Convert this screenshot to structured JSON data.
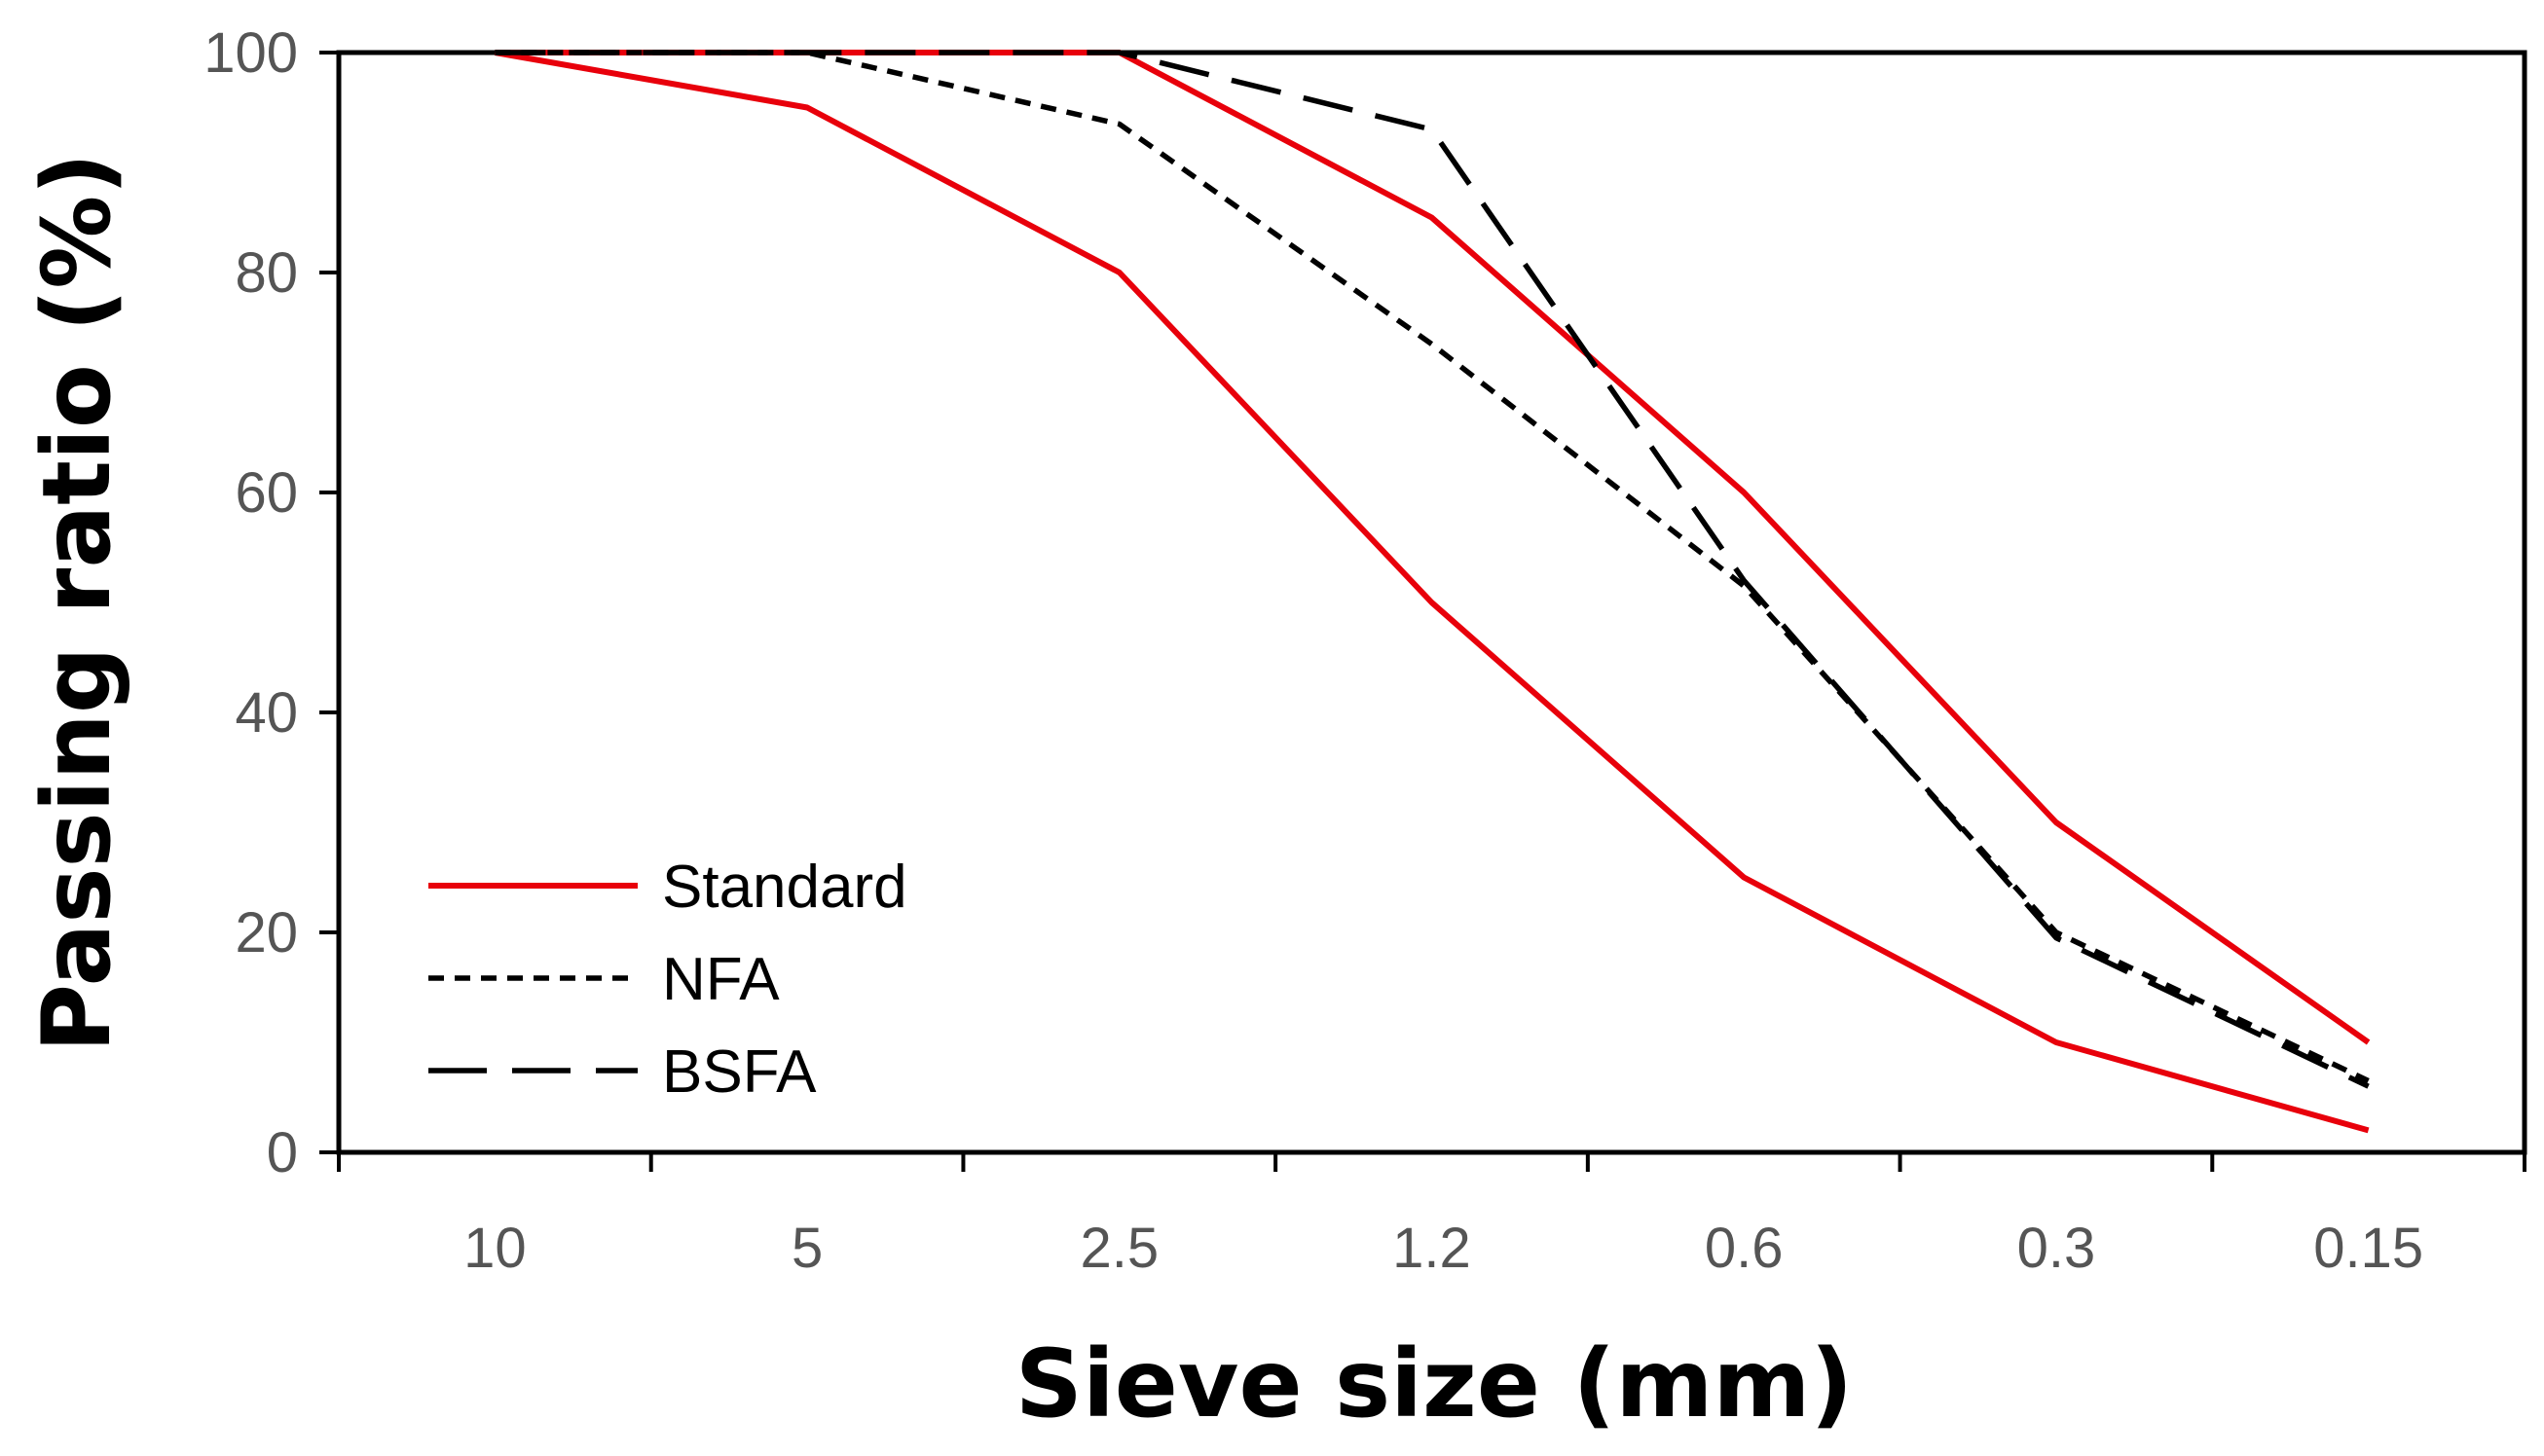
{
  "chart_data": {
    "type": "line",
    "title": "",
    "xlabel": "Sieve size (mm)",
    "ylabel": "Passing ratio (%)",
    "categories": [
      "10",
      "5",
      "2.5",
      "1.2",
      "0.6",
      "0.3",
      "0.15"
    ],
    "ylim": [
      0,
      100
    ],
    "yticks": [
      "0",
      "20",
      "40",
      "60",
      "80",
      "100"
    ],
    "grid": false,
    "legend_position": "bottom-left",
    "series": [
      {
        "name": "Standard",
        "style": "solid",
        "color": "#e8000b",
        "values": [
          100,
          100,
          100,
          85,
          60,
          30,
          10
        ]
      },
      {
        "name": "Standard",
        "style": "solid",
        "color": "#e8000b",
        "values": [
          100,
          95,
          80,
          50,
          25,
          10,
          2
        ]
      },
      {
        "name": "NFA",
        "style": "dotted",
        "color": "#000000",
        "values": [
          100,
          100,
          93.5,
          73.5,
          51.5,
          20,
          6.5
        ]
      },
      {
        "name": "BSFA",
        "style": "dashed",
        "color": "#000000",
        "values": [
          100,
          100,
          100,
          93,
          52,
          19.5,
          6
        ]
      }
    ],
    "legend": [
      {
        "label": "Standard",
        "style": "solid",
        "color": "#e8000b"
      },
      {
        "label": "NFA",
        "style": "dotted",
        "color": "#000000"
      },
      {
        "label": "BSFA",
        "style": "dashed",
        "color": "#000000"
      }
    ]
  }
}
